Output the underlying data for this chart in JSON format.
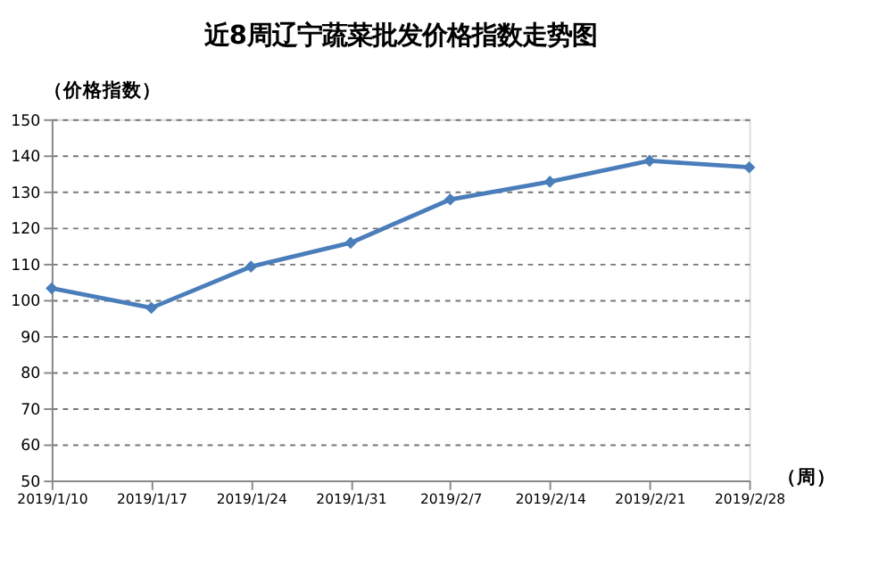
{
  "chart_data": {
    "type": "line",
    "title": "近8周辽宁蔬菜批发价格指数走势图",
    "ylabel": "（价格指数）",
    "xlabel": "（周）",
    "categories": [
      "2019/1/10",
      "2019/1/17",
      "2019/1/24",
      "2019/1/31",
      "2019/2/7",
      "2019/2/14",
      "2019/2/21",
      "2019/2/28"
    ],
    "series": [
      {
        "color": "#4a7ebb",
        "values": [
          103.2,
          97.8,
          109.2,
          115.8,
          127.8,
          132.7,
          138.5,
          136.7
        ]
      }
    ],
    "ylim": [
      50,
      150
    ],
    "yticks": [
      50,
      60,
      70,
      80,
      90,
      100,
      110,
      120,
      130,
      140,
      150
    ],
    "grid": "y",
    "marker": "diamond",
    "line_style": "solid",
    "legend": false
  }
}
